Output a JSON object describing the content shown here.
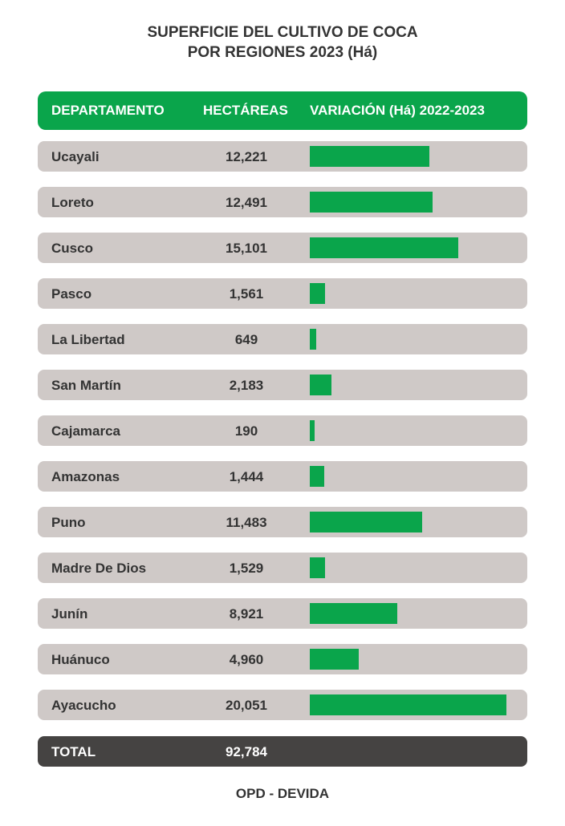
{
  "title_line1": "SUPERFICIE DEL CULTIVO DE COCA",
  "title_line2": "POR REGIONES 2023 (Há)",
  "header": {
    "col1": "DEPARTAMENTO",
    "col2": "HECTÁREAS",
    "col3": "VARIACIÓN (Há) 2022-2023"
  },
  "chart_data": {
    "type": "bar",
    "categories": [
      "Ucayali",
      "Loreto",
      "Cusco",
      "Pasco",
      "La Libertad",
      "San Martín",
      "Cajamarca",
      "Amazonas",
      "Puno",
      "Madre De Dios",
      "Junín",
      "Huánuco",
      "Ayacucho"
    ],
    "value_labels": [
      "12,221",
      "12,491",
      "15,101",
      "1,561",
      "649",
      "2,183",
      "190",
      "1,444",
      "11,483",
      "1,529",
      "8,921",
      "4,960",
      "20,051"
    ],
    "values": [
      12221,
      12491,
      15101,
      1561,
      649,
      2183,
      190,
      1444,
      11483,
      1529,
      8921,
      4960,
      20051
    ],
    "bar_color": "#0aa54b"
  },
  "total": {
    "label": "TOTAL",
    "value": "92,784"
  },
  "source": "OPD - DEVIDA",
  "colors": {
    "accent": "#0aa54b",
    "row_bg": "#cfc9c7",
    "total_bg": "#454342"
  }
}
